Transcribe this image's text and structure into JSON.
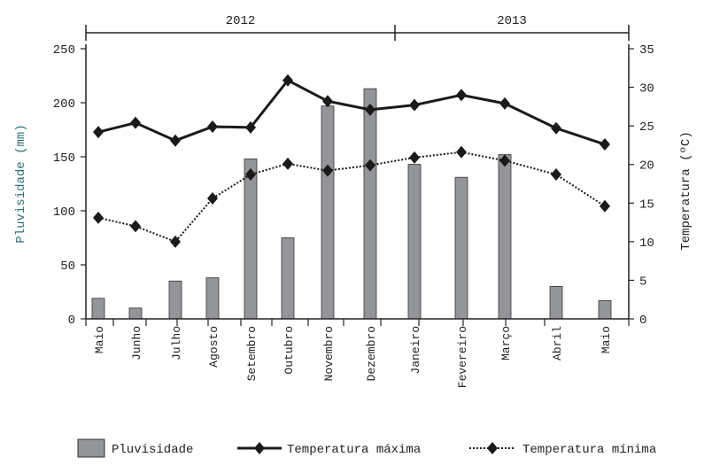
{
  "chart_data": {
    "type": "bar",
    "title": "",
    "years": [
      {
        "label": "2012"
      },
      {
        "label": "2013"
      }
    ],
    "categories": [
      "Maio",
      "Junho",
      "Julho",
      "Agosto",
      "Setembro",
      "Outubro",
      "Novembro",
      "Dezembro",
      "Janeiro",
      "Fevereiro",
      "Março",
      "Abril",
      "Maio"
    ],
    "ylabel": "Pluvisidade (mm)",
    "y2label": "Temperatura (ºC)",
    "ylim": [
      0,
      250
    ],
    "y2lim": [
      0,
      35
    ],
    "yticks": [
      0,
      50,
      100,
      150,
      200,
      250
    ],
    "y2ticks": [
      0,
      5,
      10,
      15,
      20,
      25,
      30,
      35
    ],
    "series": [
      {
        "name": "Pluvisidade",
        "type": "bar",
        "axis": "left",
        "color": "#939598",
        "values": [
          19,
          10,
          35,
          38,
          148,
          75,
          197,
          213,
          143,
          131,
          152,
          30,
          17
        ]
      },
      {
        "name": "Temperatura máxima",
        "type": "line",
        "axis": "right",
        "style": "solid",
        "color": "#1a1a1a",
        "values": [
          24.2,
          25.4,
          23.1,
          24.9,
          24.8,
          30.9,
          28.2,
          27.1,
          27.7,
          29.0,
          27.9,
          24.7,
          22.6
        ]
      },
      {
        "name": "Temperatura mínima",
        "type": "line",
        "axis": "right",
        "style": "dotted",
        "color": "#1a1a1a",
        "values": [
          13.1,
          12.0,
          10.0,
          15.6,
          18.7,
          20.1,
          19.2,
          19.9,
          20.9,
          21.6,
          20.5,
          18.7,
          14.6
        ]
      }
    ],
    "legend": "bottom"
  }
}
